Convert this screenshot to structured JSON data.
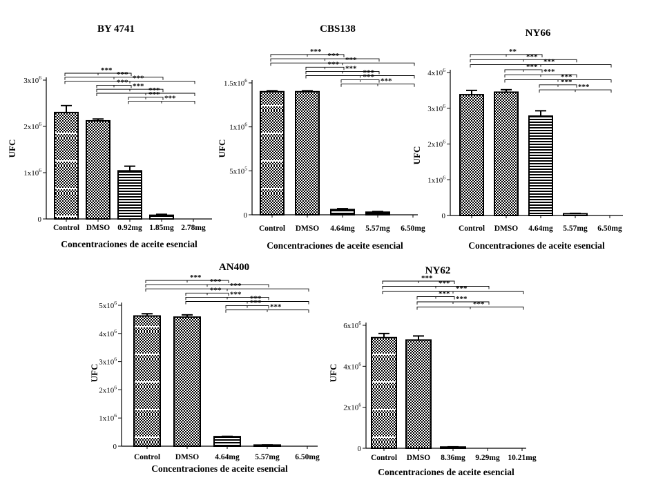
{
  "chart_data": [
    {
      "type": "bar",
      "title": "BY 4741",
      "xlabel": "Concentraciones de aceite esencial",
      "ylabel": "UFC",
      "categories": [
        "Control",
        "DMSO",
        "0.92mg",
        "1.85mg",
        "2.78mg"
      ],
      "values": [
        2300000,
        2120000,
        1040000,
        80000,
        0
      ],
      "errors": [
        150000,
        40000,
        100000,
        20000,
        0
      ],
      "patterns": [
        "check-stripe",
        "check",
        "hline",
        "hline",
        "none"
      ],
      "ylim": [
        0,
        3000000
      ],
      "yticks": [
        {
          "value": 0,
          "base": "0",
          "sup": ""
        },
        {
          "value": 1000000,
          "base": "1x10",
          "sup": "6"
        },
        {
          "value": 2000000,
          "base": "2x10",
          "sup": "6"
        },
        {
          "value": 3000000,
          "base": "3x10",
          "sup": "6"
        }
      ],
      "comparisons": [
        {
          "from": 0,
          "to": 2,
          "label": "***"
        },
        {
          "from": 0,
          "to": 3,
          "label": "***"
        },
        {
          "from": 0,
          "to": 4,
          "label": "***"
        },
        {
          "from": 1,
          "to": 2,
          "label": "***"
        },
        {
          "from": 1,
          "to": 3,
          "label": "***"
        },
        {
          "from": 1,
          "to": 4,
          "label": "***"
        },
        {
          "from": 2,
          "to": 3,
          "label": "***"
        },
        {
          "from": 2,
          "to": 4,
          "label": "***"
        }
      ]
    },
    {
      "type": "bar",
      "title": "CBS138",
      "xlabel": "Concentraciones de aceite esencial",
      "ylabel": "UFC",
      "categories": [
        "Control",
        "DMSO",
        "4.64mg",
        "5.57mg",
        "6.50mg"
      ],
      "values": [
        1400000,
        1400000,
        60000,
        30000,
        0
      ],
      "errors": [
        10000,
        10000,
        10000,
        8000,
        0
      ],
      "patterns": [
        "check-stripe",
        "check",
        "hline",
        "hline",
        "none"
      ],
      "ylim": [
        0,
        1500000
      ],
      "yticks": [
        {
          "value": 0,
          "base": "0",
          "sup": ""
        },
        {
          "value": 500000,
          "base": "5x10",
          "sup": "5"
        },
        {
          "value": 1000000,
          "base": "1x10",
          "sup": "6"
        },
        {
          "value": 1500000,
          "base": "1.5x10",
          "sup": "6"
        }
      ],
      "comparisons": [
        {
          "from": 0,
          "to": 2,
          "label": "***"
        },
        {
          "from": 0,
          "to": 3,
          "label": "***"
        },
        {
          "from": 0,
          "to": 4,
          "label": "***"
        },
        {
          "from": 1,
          "to": 2,
          "label": "***"
        },
        {
          "from": 1,
          "to": 3,
          "label": "***"
        },
        {
          "from": 1,
          "to": 4,
          "label": "***"
        },
        {
          "from": 2,
          "to": 3,
          "label": "***"
        },
        {
          "from": 2,
          "to": 4,
          "label": "***"
        }
      ]
    },
    {
      "type": "bar",
      "title": "NY66",
      "xlabel": "Concentraciones de aceite esencial",
      "ylabel": "UFC",
      "categories": [
        "Control",
        "DMSO",
        "4.64mg",
        "5.57mg",
        "6.50mg"
      ],
      "values": [
        3380000,
        3450000,
        2780000,
        50000,
        0
      ],
      "errors": [
        120000,
        70000,
        150000,
        10000,
        0
      ],
      "patterns": [
        "check",
        "check",
        "hline",
        "hline",
        "none"
      ],
      "ylim": [
        0,
        4000000
      ],
      "yticks": [
        {
          "value": 0,
          "base": "0",
          "sup": ""
        },
        {
          "value": 1000000,
          "base": "1x10",
          "sup": "6"
        },
        {
          "value": 2000000,
          "base": "2x10",
          "sup": "6"
        },
        {
          "value": 3000000,
          "base": "3x10",
          "sup": "6"
        },
        {
          "value": 4000000,
          "base": "4x10",
          "sup": "6"
        }
      ],
      "comparisons": [
        {
          "from": 0,
          "to": 2,
          "label": "**"
        },
        {
          "from": 0,
          "to": 3,
          "label": "***"
        },
        {
          "from": 0,
          "to": 4,
          "label": "***"
        },
        {
          "from": 1,
          "to": 2,
          "label": "***"
        },
        {
          "from": 1,
          "to": 3,
          "label": "***"
        },
        {
          "from": 1,
          "to": 4,
          "label": "***"
        },
        {
          "from": 2,
          "to": 3,
          "label": "***"
        },
        {
          "from": 2,
          "to": 4,
          "label": "***"
        }
      ]
    },
    {
      "type": "bar",
      "title": "AN400",
      "xlabel": "Concentraciones de aceite esencial",
      "ylabel": "UFC",
      "categories": [
        "Control",
        "DMSO",
        "4.64mg",
        "5.57mg",
        "6.50mg"
      ],
      "values": [
        4620000,
        4580000,
        340000,
        40000,
        0
      ],
      "errors": [
        80000,
        80000,
        10000,
        5000,
        0
      ],
      "patterns": [
        "check-stripe",
        "check",
        "hline",
        "hline",
        "none"
      ],
      "ylim": [
        0,
        5000000
      ],
      "yticks": [
        {
          "value": 0,
          "base": "0",
          "sup": ""
        },
        {
          "value": 1000000,
          "base": "1x10",
          "sup": "6"
        },
        {
          "value": 2000000,
          "base": "2x10",
          "sup": "6"
        },
        {
          "value": 3000000,
          "base": "3x10",
          "sup": "6"
        },
        {
          "value": 4000000,
          "base": "4x10",
          "sup": "6"
        },
        {
          "value": 5000000,
          "base": "5x10",
          "sup": "6"
        }
      ],
      "comparisons": [
        {
          "from": 0,
          "to": 2,
          "label": "***"
        },
        {
          "from": 0,
          "to": 3,
          "label": "***"
        },
        {
          "from": 0,
          "to": 4,
          "label": "***"
        },
        {
          "from": 1,
          "to": 2,
          "label": "***"
        },
        {
          "from": 1,
          "to": 3,
          "label": "***"
        },
        {
          "from": 1,
          "to": 4,
          "label": "***"
        },
        {
          "from": 2,
          "to": 3,
          "label": "***"
        },
        {
          "from": 2,
          "to": 4,
          "label": "***"
        }
      ]
    },
    {
      "type": "bar",
      "title": "NY62",
      "xlabel": "Concentraciones de aceite esencial",
      "ylabel": "UFC",
      "categories": [
        "Control",
        "DMSO",
        "8.36mg",
        "9.29mg",
        "10.21mg"
      ],
      "values": [
        5400000,
        5280000,
        60000,
        0,
        0
      ],
      "errors": [
        200000,
        200000,
        10000,
        0,
        0
      ],
      "patterns": [
        "check-stripe",
        "check",
        "hline",
        "none",
        "none"
      ],
      "ylim": [
        0,
        6000000
      ],
      "yticks": [
        {
          "value": 0,
          "base": "0",
          "sup": ""
        },
        {
          "value": 2000000,
          "base": "2x10",
          "sup": "6"
        },
        {
          "value": 4000000,
          "base": "4x10",
          "sup": "6"
        },
        {
          "value": 6000000,
          "base": "6x10",
          "sup": "6"
        }
      ],
      "comparisons": [
        {
          "from": 0,
          "to": 2,
          "label": "***"
        },
        {
          "from": 0,
          "to": 3,
          "label": "***"
        },
        {
          "from": 0,
          "to": 4,
          "label": "***"
        },
        {
          "from": 1,
          "to": 2,
          "label": "***"
        },
        {
          "from": 1,
          "to": 3,
          "label": "***"
        },
        {
          "from": 1,
          "to": 4,
          "label": "***"
        }
      ]
    }
  ]
}
